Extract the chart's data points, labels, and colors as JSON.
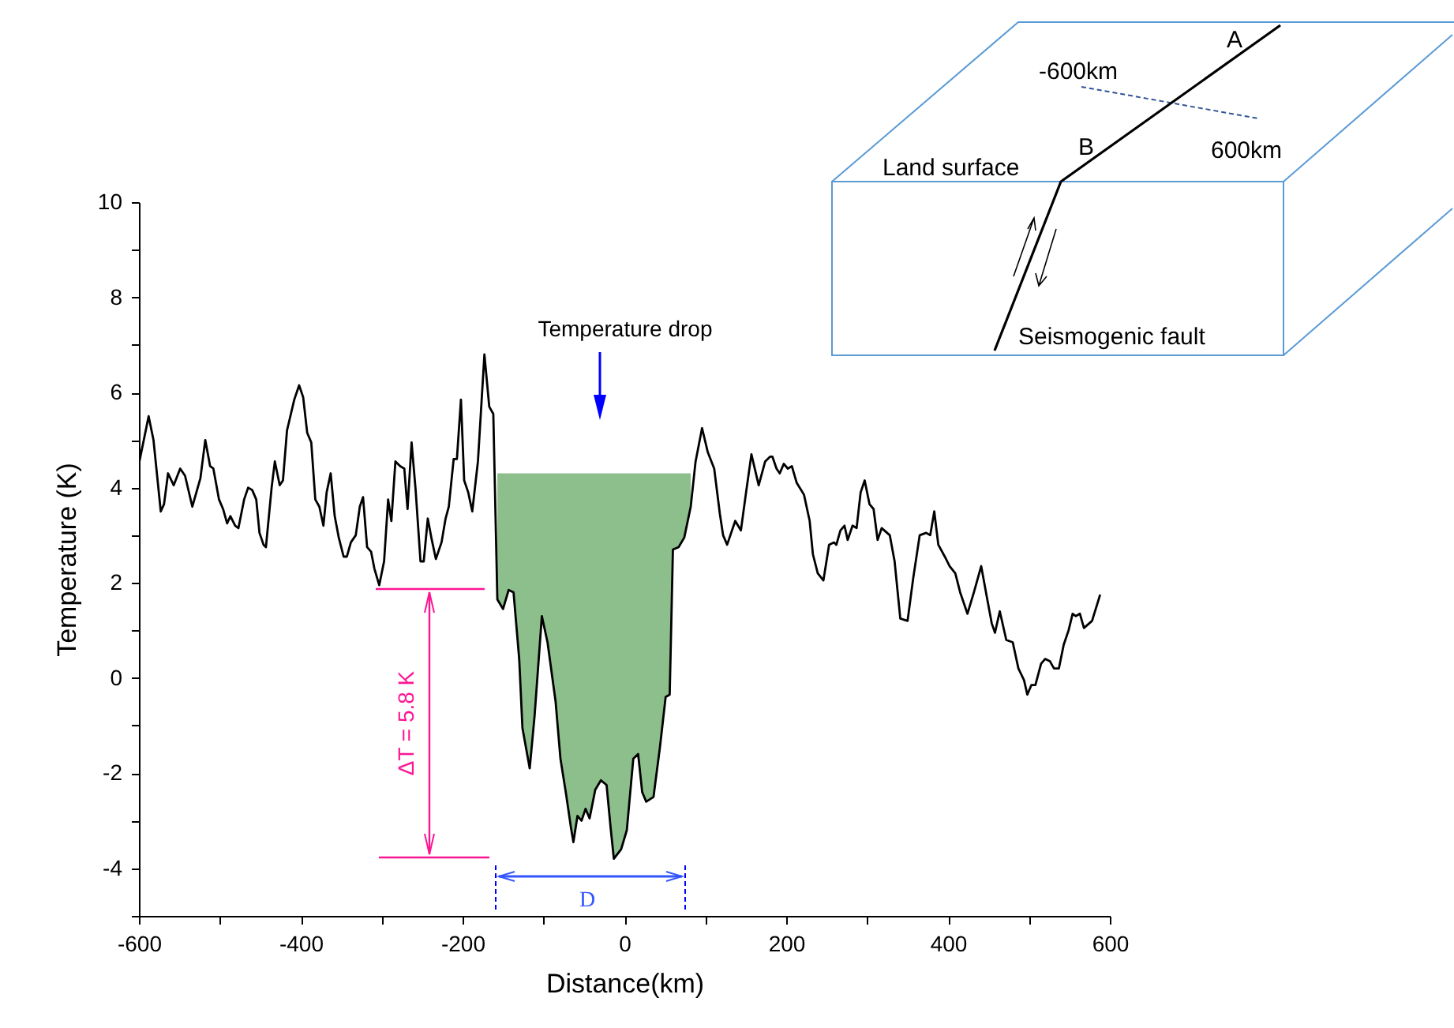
{
  "chart_data": {
    "type": "line",
    "xlabel": "Distance(km)",
    "ylabel": "Temperature (K)",
    "xlim": [
      -600,
      600
    ],
    "ylim": [
      -5,
      10
    ],
    "xticks": [
      -600,
      {
        "value": -500,
        "label": null
      },
      -400,
      {
        "value": -300,
        "label": null
      },
      -200,
      {
        "value": -100,
        "label": null
      },
      0,
      {
        "value": 100,
        "label": null
      },
      200,
      {
        "value": 300,
        "label": null
      },
      400,
      {
        "value": 500,
        "label": null
      },
      600
    ],
    "yticks": [
      {
        "value": -5,
        "label": null
      },
      -4,
      {
        "value": -3,
        "label": null
      },
      -2,
      {
        "value": -1,
        "label": null
      },
      0,
      {
        "value": 1,
        "label": null
      },
      2,
      {
        "value": 3,
        "label": null
      },
      4,
      {
        "value": 5,
        "label": null
      },
      6,
      {
        "value": 7,
        "label": null
      },
      8,
      {
        "value": 9,
        "label": null
      },
      10
    ],
    "grid": false,
    "marker": "none",
    "line_style": "solid",
    "series": [
      {
        "color": "#000000",
        "x": [
          -600,
          -588,
          -582,
          -573,
          -569,
          -564,
          -557,
          -549,
          -543,
          -534,
          -524,
          -518,
          -512,
          -508,
          -501,
          -496,
          -491,
          -487,
          -481,
          -477,
          -470,
          -465,
          -460,
          -455,
          -451,
          -446,
          -443,
          -436,
          -432,
          -426,
          -422,
          -417,
          -408,
          -402,
          -397,
          -392,
          -387,
          -382,
          -377,
          -372,
          -368,
          -363,
          -358,
          -353,
          -347,
          -343,
          -338,
          -332,
          -327,
          -323,
          -318,
          -313,
          -309,
          -303,
          -297,
          -292,
          -288,
          -283,
          -277,
          -272,
          -268,
          -263,
          -258,
          -252,
          -248,
          -243,
          -238,
          -233,
          -226,
          -221,
          -217,
          -211,
          -207,
          -202,
          -198,
          -193,
          -188,
          -181,
          -173,
          -167,
          -162,
          -157,
          -150,
          -143,
          -137,
          -130,
          -126,
          -117,
          -111,
          -102,
          -95,
          -85,
          -79,
          -72,
          -66,
          -63,
          -58,
          -53,
          -48,
          -43,
          -36,
          -29,
          -22,
          -17,
          -13,
          -4,
          3,
          11,
          17,
          22,
          27,
          36,
          44,
          51,
          56,
          60,
          67,
          74,
          82,
          88,
          96,
          103,
          111,
          118,
          122,
          127,
          137,
          144,
          150,
          157,
          166,
          174,
          180,
          183,
          188,
          192,
          197,
          202,
          207,
          213,
          222,
          229,
          233,
          239,
          246,
          253,
          259,
          262,
          267,
          272,
          276,
          282,
          287,
          292,
          297,
          303,
          308,
          313,
          318,
          328,
          334,
          341,
          350,
          357,
          365,
          373,
          378,
          383,
          388,
          396,
          402,
          409,
          415,
          424,
          432,
          441,
          448,
          454,
          458,
          464,
          472,
          480,
          487,
          494,
          498,
          503,
          508,
          515,
          520,
          526,
          531,
          537,
          543,
          549,
          554,
          558,
          563,
          568,
          578,
          588
        ],
        "values": [
          4.5,
          5.5,
          5.0,
          3.5,
          3.65,
          4.3,
          4.05,
          4.4,
          4.25,
          3.6,
          4.2,
          5.0,
          4.45,
          4.4,
          3.75,
          3.55,
          3.25,
          3.4,
          3.2,
          3.15,
          3.75,
          4.0,
          3.95,
          3.75,
          3.05,
          2.8,
          2.75,
          4.0,
          4.55,
          4.05,
          4.15,
          5.2,
          5.85,
          6.15,
          5.9,
          5.15,
          4.95,
          3.75,
          3.6,
          3.2,
          3.9,
          4.3,
          3.4,
          2.95,
          2.55,
          2.55,
          2.85,
          3.0,
          3.6,
          3.8,
          2.75,
          2.65,
          2.3,
          1.95,
          2.45,
          3.75,
          3.3,
          4.55,
          4.45,
          4.4,
          3.55,
          4.95,
          3.95,
          2.45,
          2.45,
          3.35,
          2.9,
          2.5,
          2.85,
          3.35,
          3.6,
          4.6,
          4.6,
          5.85,
          4.15,
          3.9,
          3.5,
          4.55,
          6.8,
          5.7,
          5.55,
          1.65,
          1.45,
          1.85,
          1.8,
          0.4,
          -1.05,
          -1.9,
          -0.8,
          1.3,
          0.75,
          -0.5,
          -1.7,
          -2.45,
          -3.15,
          -3.45,
          -2.9,
          -3.0,
          -2.75,
          -2.95,
          -2.35,
          -2.15,
          -2.25,
          -3.15,
          -3.8,
          -3.6,
          -3.2,
          -1.7,
          -1.6,
          -2.4,
          -2.6,
          -2.5,
          -1.45,
          -0.4,
          -0.35,
          2.7,
          2.75,
          2.95,
          3.6,
          4.55,
          5.25,
          4.75,
          4.4,
          3.45,
          3.0,
          2.8,
          3.3,
          3.1,
          3.85,
          4.7,
          4.05,
          4.55,
          4.65,
          4.65,
          4.4,
          4.3,
          4.5,
          4.4,
          4.45,
          4.1,
          3.85,
          3.3,
          2.6,
          2.2,
          2.05,
          2.8,
          2.85,
          2.8,
          3.1,
          3.2,
          2.9,
          3.2,
          3.15,
          3.9,
          4.15,
          3.65,
          3.55,
          2.9,
          3.15,
          3.0,
          2.45,
          1.25,
          1.2,
          2.1,
          3.0,
          3.05,
          3.0,
          3.5,
          2.8,
          2.55,
          2.35,
          2.2,
          1.8,
          1.35,
          1.8,
          2.35,
          1.7,
          1.15,
          0.95,
          1.4,
          0.8,
          0.75,
          0.2,
          -0.05,
          -0.35,
          -0.15,
          -0.15,
          0.3,
          0.4,
          0.35,
          0.2,
          0.2,
          0.7,
          1.0,
          1.35,
          1.3,
          1.35,
          1.05,
          1.2,
          1.75
        ],
        "lower": [
          null,
          null,
          null,
          null,
          null,
          null,
          null,
          null,
          null,
          null,
          null,
          null,
          null,
          null,
          null,
          null,
          null,
          null,
          null,
          null,
          null,
          null,
          null,
          null,
          null,
          null,
          null,
          null,
          null,
          null,
          null,
          null,
          null,
          null,
          null,
          null,
          null,
          null,
          null,
          null,
          null,
          null,
          null,
          null,
          null,
          null,
          null,
          null,
          null,
          null,
          null,
          null,
          null,
          null,
          null,
          null,
          null,
          null,
          null,
          null,
          null,
          null,
          null,
          null,
          null,
          null,
          null,
          null,
          null,
          null,
          null,
          null,
          null,
          null,
          null,
          null,
          null,
          null,
          null,
          null,
          null,
          1.65,
          1.45,
          1.85,
          1.8,
          0.4,
          -1.05,
          -1.9,
          -0.8,
          1.3,
          0.75,
          -0.5,
          -1.7,
          -2.45,
          -3.15,
          -3.45,
          -2.9,
          -3.0,
          -2.75,
          -2.95,
          -2.35,
          -2.15,
          -2.25,
          -3.15,
          -3.8,
          -3.6,
          -3.2,
          -1.7,
          -1.6,
          -2.4,
          -2.6,
          -2.5,
          -1.45,
          -0.4,
          -0.35,
          2.7,
          2.75,
          2.95,
          3.6,
          null,
          null,
          null,
          null,
          null,
          null,
          null,
          null,
          null,
          null,
          null,
          null,
          null,
          null,
          null,
          null,
          null,
          null,
          null,
          null,
          null,
          null,
          null,
          null,
          null,
          null,
          null,
          null,
          null,
          null,
          null,
          null,
          null,
          null,
          null,
          null,
          null,
          null,
          null,
          null,
          null,
          null,
          null,
          null,
          null,
          null,
          null,
          null,
          null,
          null,
          null,
          null,
          null,
          null,
          null,
          null,
          null,
          null,
          null,
          null,
          null,
          null,
          null,
          null,
          null,
          null,
          null,
          null,
          null,
          null,
          null,
          null,
          null,
          null,
          null,
          null,
          null,
          null,
          null,
          null,
          null
        ],
        "upper": [
          null,
          null,
          null,
          null,
          null,
          null,
          null,
          null,
          null,
          null,
          null,
          null,
          null,
          null,
          null,
          null,
          null,
          null,
          null,
          null,
          null,
          null,
          null,
          null,
          null,
          null,
          null,
          null,
          null,
          null,
          null,
          null,
          null,
          null,
          null,
          null,
          null,
          null,
          null,
          null,
          null,
          null,
          null,
          null,
          null,
          null,
          null,
          null,
          null,
          null,
          null,
          null,
          null,
          null,
          null,
          null,
          null,
          null,
          null,
          null,
          null,
          null,
          null,
          null,
          null,
          null,
          null,
          null,
          null,
          null,
          null,
          null,
          null,
          null,
          null,
          null,
          null,
          null,
          null,
          null,
          null,
          4.3,
          4.3,
          4.3,
          4.3,
          4.3,
          4.3,
          4.3,
          4.3,
          4.3,
          4.3,
          4.3,
          4.3,
          4.3,
          4.3,
          4.3,
          4.3,
          4.3,
          4.3,
          4.3,
          4.3,
          4.3,
          4.3,
          4.3,
          4.3,
          4.3,
          4.3,
          4.3,
          4.3,
          4.3,
          4.3,
          4.3,
          4.3,
          4.3,
          4.3,
          4.3,
          4.3,
          4.3,
          4.3,
          null,
          null,
          null,
          null,
          null,
          null,
          null,
          null,
          null,
          null,
          null,
          null,
          null,
          null,
          null,
          null,
          null,
          null,
          null,
          null,
          null,
          null,
          null,
          null,
          null,
          null,
          null,
          null,
          null,
          null,
          null,
          null,
          null,
          null,
          null,
          null,
          null,
          null,
          null,
          null,
          null,
          null,
          null,
          null,
          null,
          null,
          null,
          null,
          null,
          null,
          null,
          null,
          null,
          null,
          null,
          null,
          null,
          null,
          null,
          null,
          null,
          null,
          null,
          null,
          null,
          null,
          null,
          null,
          null,
          null,
          null,
          null,
          null,
          null,
          null,
          null,
          null,
          null,
          null,
          null,
          null
        ]
      }
    ],
    "annotations": [
      "Temperature drop",
      "ΔT = 5.8 K",
      "D",
      "A",
      "-600km",
      "B",
      "600km",
      "Land surface",
      "Seismogenic fault"
    ]
  }
}
